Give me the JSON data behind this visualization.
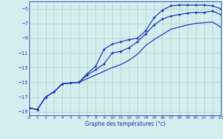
{
  "xlabel": "Graphe des températures (°c)",
  "background_color": "#d4eeee",
  "grid_color": "#a8cccc",
  "line_color": "#1a32b0",
  "xlim": [
    0,
    23
  ],
  "ylim": [
    -19.5,
    -4.0
  ],
  "yticks": [
    -19,
    -17,
    -15,
    -13,
    -11,
    -9,
    -7,
    -5
  ],
  "xticks": [
    0,
    1,
    2,
    3,
    4,
    5,
    6,
    7,
    8,
    9,
    10,
    11,
    12,
    13,
    14,
    15,
    16,
    17,
    18,
    19,
    20,
    21,
    22,
    23
  ],
  "xticklabels": [
    "0",
    "1",
    "2",
    "3",
    "4",
    "5",
    "6",
    "7",
    "8",
    "9",
    "10",
    "11",
    "12",
    "13",
    "14",
    "15",
    "16",
    "17",
    "18",
    "19",
    "20",
    "21",
    "22",
    "23"
  ],
  "line1_y": [
    -18.5,
    -18.7,
    -17.0,
    -16.3,
    -15.2,
    -15.1,
    -15.0,
    -13.8,
    -12.8,
    -10.5,
    -9.8,
    -9.5,
    -9.2,
    -9.0,
    -8.0,
    -6.2,
    -5.2,
    -4.6,
    -4.5,
    -4.5,
    -4.5,
    -4.5,
    -4.6,
    -5.0
  ],
  "line2_y": [
    -18.5,
    -18.7,
    -17.0,
    -16.3,
    -15.2,
    -15.1,
    -15.0,
    -14.0,
    -13.3,
    -12.5,
    -11.0,
    -10.8,
    -10.3,
    -9.5,
    -8.4,
    -7.2,
    -6.4,
    -6.0,
    -5.8,
    -5.6,
    -5.5,
    -5.5,
    -5.3,
    -5.8
  ],
  "line3_y": [
    -18.5,
    -18.7,
    -17.0,
    -16.3,
    -15.2,
    -15.1,
    -15.0,
    -14.5,
    -14.0,
    -13.5,
    -13.0,
    -12.6,
    -12.0,
    -11.2,
    -10.0,
    -9.2,
    -8.5,
    -7.8,
    -7.5,
    -7.2,
    -7.0,
    -6.9,
    -6.8,
    -7.5
  ]
}
